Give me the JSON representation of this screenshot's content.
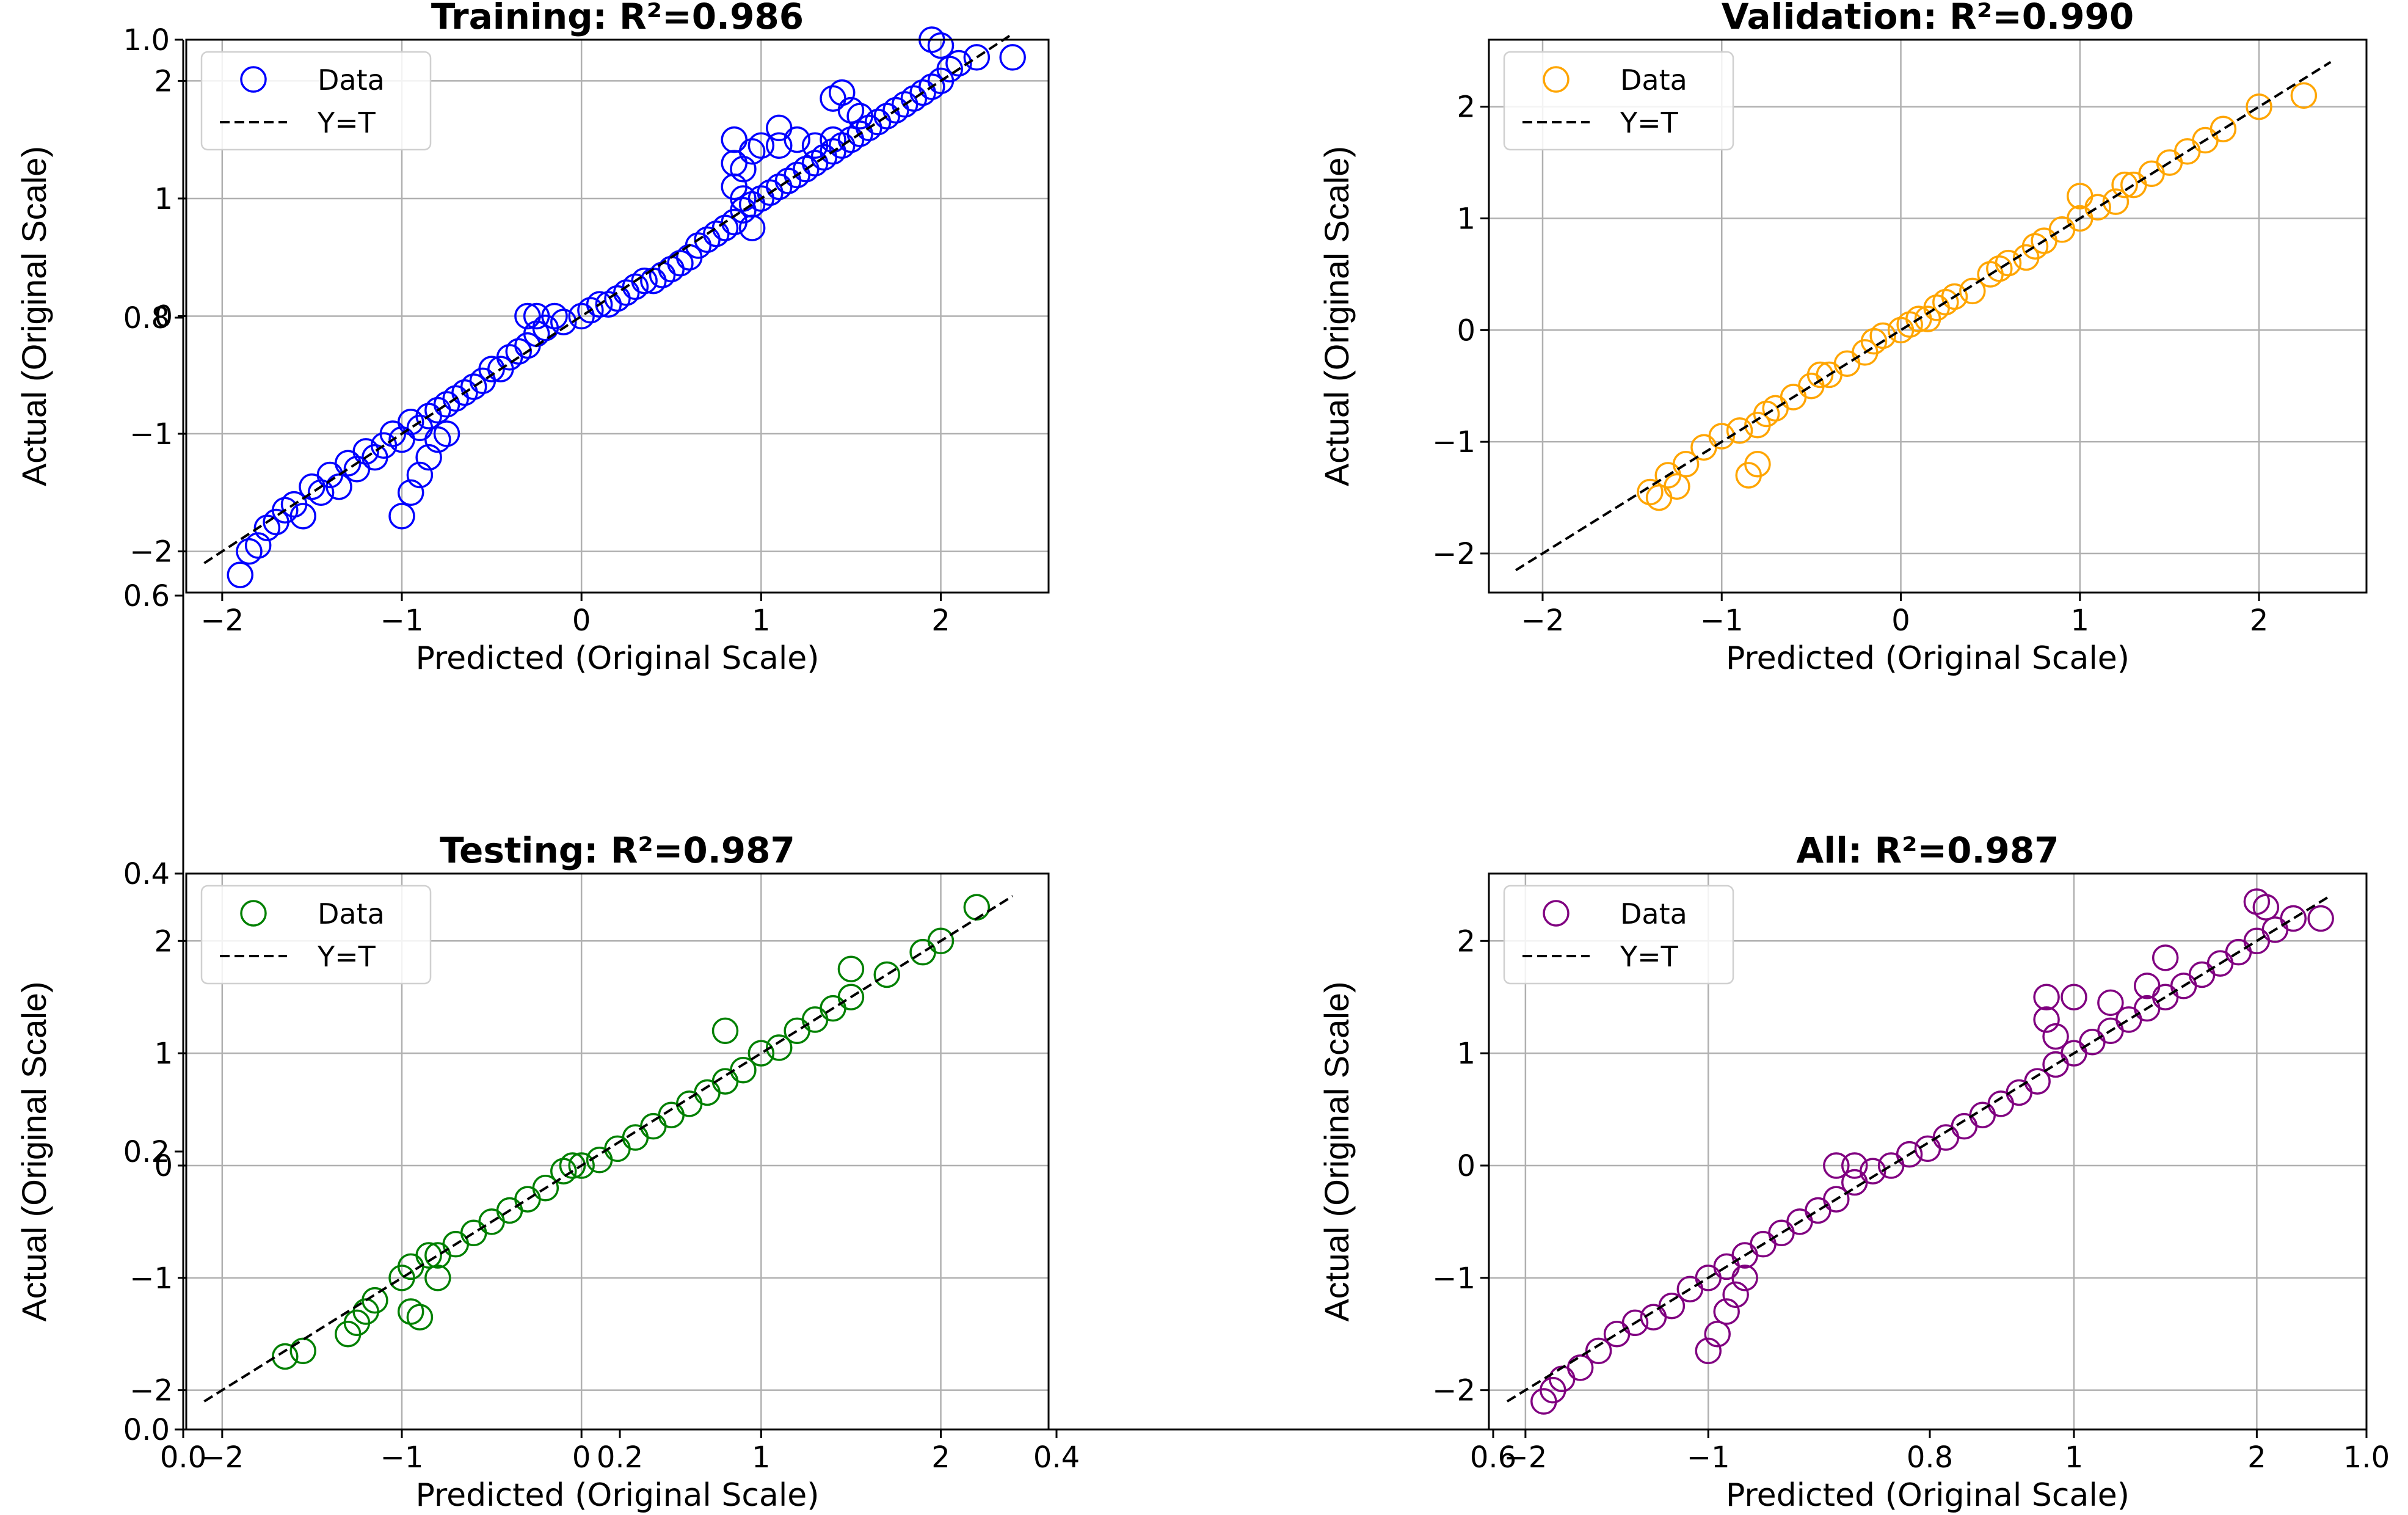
{
  "axis_labels": {
    "x": "Predicted (Original Scale)",
    "y": "Actual (Original Scale)"
  },
  "legend": {
    "data_label": "Data",
    "line_label": "Y=T"
  },
  "colors": {
    "line": "#000000",
    "grid": "#b0b0b0"
  },
  "background_axis": {
    "x_ticks": [
      "0.0",
      "0.2",
      "0.4",
      "0.6",
      "0.8",
      "1.0"
    ],
    "y_ticks": [
      "0.0",
      "0.2",
      "0.4",
      "0.6",
      "0.8",
      "1.0"
    ]
  },
  "chart_data": [
    {
      "type": "scatter",
      "title": "Training: R²=0.986",
      "color": "#0000ff",
      "xlim": [
        -2.2,
        2.6
      ],
      "ylim": [
        -2.35,
        2.35
      ],
      "x_ticks": [
        -2,
        -1,
        0,
        1,
        2
      ],
      "y_ticks": [
        -2,
        -1,
        0,
        1,
        2
      ],
      "line_range": [
        -2.1,
        2.4
      ],
      "r2": 0.986,
      "points": [
        [
          -1.9,
          -2.2
        ],
        [
          -1.85,
          -2.0
        ],
        [
          -1.8,
          -1.95
        ],
        [
          -1.75,
          -1.8
        ],
        [
          -1.7,
          -1.75
        ],
        [
          -1.65,
          -1.65
        ],
        [
          -1.6,
          -1.6
        ],
        [
          -1.55,
          -1.7
        ],
        [
          -1.5,
          -1.45
        ],
        [
          -1.45,
          -1.5
        ],
        [
          -1.4,
          -1.35
        ],
        [
          -1.35,
          -1.45
        ],
        [
          -1.3,
          -1.25
        ],
        [
          -1.25,
          -1.3
        ],
        [
          -1.2,
          -1.15
        ],
        [
          -1.15,
          -1.2
        ],
        [
          -1.1,
          -1.1
        ],
        [
          -1.05,
          -1.0
        ],
        [
          -1.0,
          -1.05
        ],
        [
          -0.95,
          -0.9
        ],
        [
          -0.9,
          -0.95
        ],
        [
          -0.85,
          -0.85
        ],
        [
          -0.8,
          -0.8
        ],
        [
          -0.75,
          -0.75
        ],
        [
          -0.7,
          -0.7
        ],
        [
          -0.65,
          -0.65
        ],
        [
          -0.6,
          -0.6
        ],
        [
          -0.55,
          -0.55
        ],
        [
          -0.5,
          -0.45
        ],
        [
          -0.45,
          -0.45
        ],
        [
          -0.4,
          -0.35
        ],
        [
          -0.35,
          -0.3
        ],
        [
          -0.3,
          -0.25
        ],
        [
          -0.25,
          -0.15
        ],
        [
          -0.2,
          -0.1
        ],
        [
          -0.3,
          0.0
        ],
        [
          -0.25,
          0.0
        ],
        [
          -0.15,
          0.0
        ],
        [
          -0.1,
          -0.05
        ],
        [
          0.0,
          0.0
        ],
        [
          0.05,
          0.05
        ],
        [
          0.1,
          0.1
        ],
        [
          0.15,
          0.1
        ],
        [
          0.2,
          0.15
        ],
        [
          0.25,
          0.2
        ],
        [
          0.3,
          0.25
        ],
        [
          0.35,
          0.3
        ],
        [
          0.4,
          0.3
        ],
        [
          0.45,
          0.35
        ],
        [
          0.5,
          0.4
        ],
        [
          0.55,
          0.45
        ],
        [
          0.6,
          0.5
        ],
        [
          0.65,
          0.6
        ],
        [
          0.7,
          0.65
        ],
        [
          0.75,
          0.7
        ],
        [
          0.8,
          0.75
        ],
        [
          0.85,
          0.8
        ],
        [
          0.9,
          0.9
        ],
        [
          0.95,
          0.95
        ],
        [
          1.0,
          1.0
        ],
        [
          1.05,
          1.05
        ],
        [
          1.1,
          1.1
        ],
        [
          1.15,
          1.15
        ],
        [
          1.2,
          1.2
        ],
        [
          1.25,
          1.25
        ],
        [
          1.3,
          1.3
        ],
        [
          1.35,
          1.35
        ],
        [
          1.4,
          1.4
        ],
        [
          1.45,
          1.45
        ],
        [
          1.5,
          1.5
        ],
        [
          1.55,
          1.55
        ],
        [
          1.6,
          1.6
        ],
        [
          1.65,
          1.65
        ],
        [
          1.7,
          1.7
        ],
        [
          1.75,
          1.75
        ],
        [
          1.8,
          1.8
        ],
        [
          1.85,
          1.85
        ],
        [
          1.9,
          1.9
        ],
        [
          1.95,
          1.95
        ],
        [
          2.0,
          2.0
        ],
        [
          2.05,
          2.1
        ],
        [
          2.1,
          2.15
        ],
        [
          2.2,
          2.2
        ],
        [
          2.4,
          2.2
        ],
        [
          -1.0,
          -1.7
        ],
        [
          -0.95,
          -1.5
        ],
        [
          -0.9,
          -1.35
        ],
        [
          -0.85,
          -1.2
        ],
        [
          -0.8,
          -1.05
        ],
        [
          -0.75,
          -1.0
        ],
        [
          0.85,
          1.5
        ],
        [
          0.85,
          1.3
        ],
        [
          0.85,
          1.1
        ],
        [
          0.9,
          1.25
        ],
        [
          0.95,
          1.4
        ],
        [
          1.0,
          1.45
        ],
        [
          1.1,
          1.45
        ],
        [
          1.2,
          1.5
        ],
        [
          1.3,
          1.45
        ],
        [
          1.4,
          1.5
        ],
        [
          0.9,
          1.0
        ],
        [
          0.95,
          0.75
        ],
        [
          1.4,
          1.85
        ],
        [
          1.45,
          1.9
        ],
        [
          1.5,
          1.75
        ],
        [
          1.55,
          1.7
        ],
        [
          1.95,
          2.35
        ],
        [
          2.0,
          2.3
        ],
        [
          1.1,
          1.6
        ]
      ]
    },
    {
      "type": "scatter",
      "title": "Validation: R²=0.990",
      "color": "#ffa500",
      "xlim": [
        -2.3,
        2.6
      ],
      "ylim": [
        -2.35,
        2.6
      ],
      "x_ticks": [
        -2,
        -1,
        0,
        1,
        2
      ],
      "y_ticks": [
        -2,
        -1,
        0,
        1,
        2
      ],
      "line_range": [
        -2.15,
        2.4
      ],
      "r2": 0.99,
      "points": [
        [
          -1.4,
          -1.45
        ],
        [
          -1.35,
          -1.5
        ],
        [
          -1.3,
          -1.3
        ],
        [
          -1.25,
          -1.4
        ],
        [
          -1.2,
          -1.2
        ],
        [
          -1.1,
          -1.05
        ],
        [
          -1.0,
          -0.95
        ],
        [
          -0.9,
          -0.9
        ],
        [
          -0.8,
          -0.85
        ],
        [
          -0.85,
          -1.3
        ],
        [
          -0.8,
          -1.2
        ],
        [
          -0.75,
          -0.75
        ],
        [
          -0.7,
          -0.7
        ],
        [
          -0.6,
          -0.6
        ],
        [
          -0.5,
          -0.5
        ],
        [
          -0.45,
          -0.4
        ],
        [
          -0.4,
          -0.4
        ],
        [
          -0.3,
          -0.3
        ],
        [
          -0.2,
          -0.2
        ],
        [
          -0.15,
          -0.1
        ],
        [
          -0.1,
          -0.05
        ],
        [
          0.0,
          0.0
        ],
        [
          0.05,
          0.05
        ],
        [
          0.1,
          0.1
        ],
        [
          0.15,
          0.1
        ],
        [
          0.2,
          0.2
        ],
        [
          0.25,
          0.25
        ],
        [
          0.3,
          0.3
        ],
        [
          0.4,
          0.35
        ],
        [
          0.5,
          0.5
        ],
        [
          0.55,
          0.55
        ],
        [
          0.6,
          0.6
        ],
        [
          0.7,
          0.65
        ],
        [
          0.75,
          0.75
        ],
        [
          0.8,
          0.8
        ],
        [
          0.9,
          0.9
        ],
        [
          1.0,
          1.0
        ],
        [
          1.0,
          1.2
        ],
        [
          1.1,
          1.1
        ],
        [
          1.2,
          1.15
        ],
        [
          1.25,
          1.3
        ],
        [
          1.3,
          1.3
        ],
        [
          1.4,
          1.4
        ],
        [
          1.5,
          1.5
        ],
        [
          1.6,
          1.6
        ],
        [
          1.7,
          1.7
        ],
        [
          1.8,
          1.8
        ],
        [
          2.0,
          2.0
        ],
        [
          2.25,
          2.1
        ]
      ]
    },
    {
      "type": "scatter",
      "title": "Testing: R²=0.987",
      "color": "#008000",
      "xlim": [
        -2.2,
        2.6
      ],
      "ylim": [
        -2.35,
        2.6
      ],
      "x_ticks": [
        -2,
        -1,
        0,
        1,
        2
      ],
      "y_ticks": [
        -2,
        -1,
        0,
        1,
        2
      ],
      "line_range": [
        -2.1,
        2.4
      ],
      "r2": 0.987,
      "points": [
        [
          -1.65,
          -1.7
        ],
        [
          -1.55,
          -1.65
        ],
        [
          -1.3,
          -1.5
        ],
        [
          -1.25,
          -1.4
        ],
        [
          -1.2,
          -1.3
        ],
        [
          -1.15,
          -1.2
        ],
        [
          -1.0,
          -1.0
        ],
        [
          -0.95,
          -0.9
        ],
        [
          -0.85,
          -0.8
        ],
        [
          -0.8,
          -0.8
        ],
        [
          -0.7,
          -0.7
        ],
        [
          -0.6,
          -0.6
        ],
        [
          -0.5,
          -0.5
        ],
        [
          -0.4,
          -0.4
        ],
        [
          -0.3,
          -0.3
        ],
        [
          -0.2,
          -0.2
        ],
        [
          -0.1,
          -0.05
        ],
        [
          -0.05,
          0.0
        ],
        [
          0.0,
          0.0
        ],
        [
          0.1,
          0.05
        ],
        [
          0.2,
          0.15
        ],
        [
          0.3,
          0.25
        ],
        [
          0.4,
          0.35
        ],
        [
          0.5,
          0.45
        ],
        [
          0.6,
          0.55
        ],
        [
          0.7,
          0.65
        ],
        [
          0.8,
          0.75
        ],
        [
          0.9,
          0.85
        ],
        [
          1.0,
          1.0
        ],
        [
          1.1,
          1.05
        ],
        [
          1.2,
          1.2
        ],
        [
          1.3,
          1.3
        ],
        [
          1.4,
          1.4
        ],
        [
          1.5,
          1.5
        ],
        [
          1.7,
          1.7
        ],
        [
          1.9,
          1.9
        ],
        [
          2.0,
          2.0
        ],
        [
          2.2,
          2.3
        ],
        [
          -0.95,
          -1.3
        ],
        [
          -0.9,
          -1.35
        ],
        [
          -0.8,
          -1.0
        ],
        [
          0.8,
          1.2
        ],
        [
          1.5,
          1.75
        ]
      ]
    },
    {
      "type": "scatter",
      "title": "All: R²=0.987",
      "color": "#800080",
      "xlim": [
        -2.2,
        2.6
      ],
      "ylim": [
        -2.35,
        2.6
      ],
      "x_ticks": [
        -2,
        -1,
        1,
        2
      ],
      "y_ticks": [
        -2,
        -1,
        0,
        1,
        2
      ],
      "line_range": [
        -2.1,
        2.4
      ],
      "r2": 0.987,
      "points": [
        [
          -1.9,
          -2.1
        ],
        [
          -1.85,
          -2.0
        ],
        [
          -1.8,
          -1.9
        ],
        [
          -1.7,
          -1.8
        ],
        [
          -1.6,
          -1.65
        ],
        [
          -1.5,
          -1.5
        ],
        [
          -1.4,
          -1.4
        ],
        [
          -1.3,
          -1.35
        ],
        [
          -1.2,
          -1.25
        ],
        [
          -1.1,
          -1.1
        ],
        [
          -1.0,
          -1.0
        ],
        [
          -0.9,
          -0.9
        ],
        [
          -0.8,
          -0.8
        ],
        [
          -0.7,
          -0.7
        ],
        [
          -0.6,
          -0.6
        ],
        [
          -0.5,
          -0.5
        ],
        [
          -0.4,
          -0.4
        ],
        [
          -0.3,
          -0.3
        ],
        [
          -0.2,
          -0.15
        ],
        [
          -0.3,
          0.0
        ],
        [
          -0.2,
          0.0
        ],
        [
          -0.1,
          -0.05
        ],
        [
          0.0,
          0.0
        ],
        [
          0.1,
          0.1
        ],
        [
          0.2,
          0.15
        ],
        [
          0.3,
          0.25
        ],
        [
          0.4,
          0.35
        ],
        [
          0.5,
          0.45
        ],
        [
          0.6,
          0.55
        ],
        [
          0.7,
          0.65
        ],
        [
          0.8,
          0.75
        ],
        [
          0.9,
          0.9
        ],
        [
          1.0,
          1.0
        ],
        [
          1.1,
          1.1
        ],
        [
          1.2,
          1.2
        ],
        [
          1.3,
          1.3
        ],
        [
          1.4,
          1.4
        ],
        [
          1.5,
          1.5
        ],
        [
          1.6,
          1.6
        ],
        [
          1.7,
          1.7
        ],
        [
          1.8,
          1.8
        ],
        [
          1.9,
          1.9
        ],
        [
          2.0,
          2.0
        ],
        [
          2.1,
          2.1
        ],
        [
          2.2,
          2.2
        ],
        [
          -1.0,
          -1.65
        ],
        [
          -0.95,
          -1.5
        ],
        [
          -0.9,
          -1.3
        ],
        [
          -0.85,
          -1.15
        ],
        [
          -0.8,
          -1.0
        ],
        [
          0.85,
          1.5
        ],
        [
          0.85,
          1.3
        ],
        [
          0.9,
          1.15
        ],
        [
          1.0,
          1.5
        ],
        [
          1.2,
          1.45
        ],
        [
          1.4,
          1.6
        ],
        [
          1.5,
          1.85
        ],
        [
          2.0,
          2.35
        ],
        [
          2.05,
          2.3
        ],
        [
          2.35,
          2.2
        ]
      ]
    }
  ]
}
